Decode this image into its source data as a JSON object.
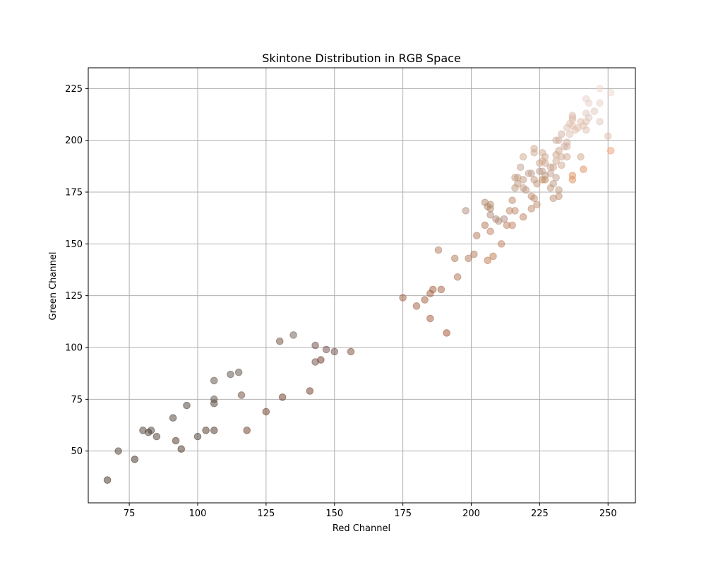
{
  "chart_data": {
    "type": "scatter",
    "title": "Skintone Distribution in RGB Space",
    "xlabel": "Red Channel",
    "ylabel": "Green Channel",
    "xlim": [
      60,
      260
    ],
    "ylim": [
      25,
      235
    ],
    "xticks": [
      75,
      100,
      125,
      150,
      175,
      200,
      225,
      250
    ],
    "yticks": [
      50,
      75,
      100,
      125,
      150,
      175,
      200,
      225
    ],
    "grid": true,
    "marker_opacity": 0.5,
    "points": [
      {
        "x": 67,
        "y": 36,
        "color": "#3d2b1f"
      },
      {
        "x": 71,
        "y": 50,
        "color": "#4a3b32"
      },
      {
        "x": 77,
        "y": 46,
        "color": "#3f2a1e"
      },
      {
        "x": 80,
        "y": 60,
        "color": "#4a3b32"
      },
      {
        "x": 82,
        "y": 59,
        "color": "#4a3b32"
      },
      {
        "x": 83,
        "y": 60,
        "color": "#4a3b32"
      },
      {
        "x": 85,
        "y": 57,
        "color": "#4a3b32"
      },
      {
        "x": 91,
        "y": 66,
        "color": "#4a3b32"
      },
      {
        "x": 92,
        "y": 55,
        "color": "#4a3124"
      },
      {
        "x": 94,
        "y": 51,
        "color": "#4a3124"
      },
      {
        "x": 96,
        "y": 72,
        "color": "#4a3b32"
      },
      {
        "x": 100,
        "y": 57,
        "color": "#4a3b32"
      },
      {
        "x": 103,
        "y": 60,
        "color": "#4a3124"
      },
      {
        "x": 106,
        "y": 60,
        "color": "#4a3124"
      },
      {
        "x": 106,
        "y": 73,
        "color": "#4a3b32"
      },
      {
        "x": 106,
        "y": 75,
        "color": "#5b4b42"
      },
      {
        "x": 106,
        "y": 84,
        "color": "#5b4b42"
      },
      {
        "x": 112,
        "y": 87,
        "color": "#5b4b42"
      },
      {
        "x": 115,
        "y": 88,
        "color": "#5b4b42"
      },
      {
        "x": 116,
        "y": 77,
        "color": "#6b4a35"
      },
      {
        "x": 118,
        "y": 60,
        "color": "#6b3a26"
      },
      {
        "x": 125,
        "y": 69,
        "color": "#6b3a26"
      },
      {
        "x": 130,
        "y": 103,
        "color": "#6b4a35"
      },
      {
        "x": 131,
        "y": 76,
        "color": "#6b3a26"
      },
      {
        "x": 135,
        "y": 106,
        "color": "#6b5a52"
      },
      {
        "x": 141,
        "y": 79,
        "color": "#6b3a26"
      },
      {
        "x": 143,
        "y": 93,
        "color": "#6b4a45"
      },
      {
        "x": 143,
        "y": 101,
        "color": "#6b4a45"
      },
      {
        "x": 145,
        "y": 94,
        "color": "#6b3a26"
      },
      {
        "x": 147,
        "y": 99,
        "color": "#6b4a45"
      },
      {
        "x": 150,
        "y": 98,
        "color": "#6b4a45"
      },
      {
        "x": 156,
        "y": 98,
        "color": "#7b4a35"
      },
      {
        "x": 175,
        "y": 124,
        "color": "#a06040"
      },
      {
        "x": 180,
        "y": 120,
        "color": "#a06040"
      },
      {
        "x": 183,
        "y": 123,
        "color": "#a06040"
      },
      {
        "x": 185,
        "y": 114,
        "color": "#a05a3a"
      },
      {
        "x": 185,
        "y": 126,
        "color": "#a06040"
      },
      {
        "x": 186,
        "y": 128,
        "color": "#a06040"
      },
      {
        "x": 188,
        "y": 147,
        "color": "#b07a5a"
      },
      {
        "x": 189,
        "y": 128,
        "color": "#a06040"
      },
      {
        "x": 191,
        "y": 107,
        "color": "#a05030"
      },
      {
        "x": 194,
        "y": 143,
        "color": "#b07a5a"
      },
      {
        "x": 195,
        "y": 134,
        "color": "#b07050"
      },
      {
        "x": 198,
        "y": 166,
        "color": "#b08a7a"
      },
      {
        "x": 199,
        "y": 143,
        "color": "#b07a5a"
      },
      {
        "x": 201,
        "y": 145,
        "color": "#b07a5a"
      },
      {
        "x": 202,
        "y": 154,
        "color": "#b07a5a"
      },
      {
        "x": 205,
        "y": 159,
        "color": "#b07a5a"
      },
      {
        "x": 205,
        "y": 170,
        "color": "#b08a6a"
      },
      {
        "x": 206,
        "y": 142,
        "color": "#c07a50"
      },
      {
        "x": 206,
        "y": 168,
        "color": "#b08a6a"
      },
      {
        "x": 207,
        "y": 156,
        "color": "#c08060"
      },
      {
        "x": 207,
        "y": 164,
        "color": "#b08a7a"
      },
      {
        "x": 207,
        "y": 167,
        "color": "#b08a6a"
      },
      {
        "x": 207,
        "y": 169,
        "color": "#b08a6a"
      },
      {
        "x": 208,
        "y": 144,
        "color": "#c07a50"
      },
      {
        "x": 209,
        "y": 162,
        "color": "#b08a7a"
      },
      {
        "x": 210,
        "y": 161,
        "color": "#b08a7a"
      },
      {
        "x": 211,
        "y": 150,
        "color": "#c08060"
      },
      {
        "x": 212,
        "y": 162,
        "color": "#b08a7a"
      },
      {
        "x": 213,
        "y": 159,
        "color": "#c08060"
      },
      {
        "x": 214,
        "y": 166,
        "color": "#c08a6a"
      },
      {
        "x": 215,
        "y": 159,
        "color": "#c08060"
      },
      {
        "x": 215,
        "y": 171,
        "color": "#c08a6a"
      },
      {
        "x": 216,
        "y": 166,
        "color": "#c08a6a"
      },
      {
        "x": 216,
        "y": 177,
        "color": "#c09a80"
      },
      {
        "x": 216,
        "y": 182,
        "color": "#c09a80"
      },
      {
        "x": 217,
        "y": 179,
        "color": "#c09a80"
      },
      {
        "x": 217,
        "y": 182,
        "color": "#c09a80"
      },
      {
        "x": 218,
        "y": 187,
        "color": "#c0a090"
      },
      {
        "x": 219,
        "y": 163,
        "color": "#c08060"
      },
      {
        "x": 219,
        "y": 177,
        "color": "#c09a80"
      },
      {
        "x": 219,
        "y": 181,
        "color": "#c09a80"
      },
      {
        "x": 219,
        "y": 192,
        "color": "#d0a890"
      },
      {
        "x": 220,
        "y": 176,
        "color": "#c09a80"
      },
      {
        "x": 221,
        "y": 184,
        "color": "#c0a090"
      },
      {
        "x": 222,
        "y": 167,
        "color": "#c08a6a"
      },
      {
        "x": 222,
        "y": 173,
        "color": "#c09070"
      },
      {
        "x": 222,
        "y": 184,
        "color": "#c0a090"
      },
      {
        "x": 223,
        "y": 172,
        "color": "#c09070"
      },
      {
        "x": 223,
        "y": 181,
        "color": "#c09a80"
      },
      {
        "x": 223,
        "y": 194,
        "color": "#d0a890"
      },
      {
        "x": 223,
        "y": 196,
        "color": "#d0a890"
      },
      {
        "x": 224,
        "y": 169,
        "color": "#c09070"
      },
      {
        "x": 224,
        "y": 179,
        "color": "#c09a80"
      },
      {
        "x": 225,
        "y": 185,
        "color": "#c0a090"
      },
      {
        "x": 225,
        "y": 189,
        "color": "#d0a890"
      },
      {
        "x": 226,
        "y": 181,
        "color": "#c08a60"
      },
      {
        "x": 226,
        "y": 185,
        "color": "#c0a090"
      },
      {
        "x": 226,
        "y": 190,
        "color": "#d0a890"
      },
      {
        "x": 226,
        "y": 194,
        "color": "#d0a890"
      },
      {
        "x": 227,
        "y": 181,
        "color": "#c08a60"
      },
      {
        "x": 227,
        "y": 183,
        "color": "#c09a80"
      },
      {
        "x": 227,
        "y": 189,
        "color": "#d0a890"
      },
      {
        "x": 227,
        "y": 192,
        "color": "#d0a890"
      },
      {
        "x": 229,
        "y": 177,
        "color": "#c09a80"
      },
      {
        "x": 229,
        "y": 184,
        "color": "#c0a090"
      },
      {
        "x": 229,
        "y": 187,
        "color": "#c0a090"
      },
      {
        "x": 230,
        "y": 172,
        "color": "#c09070"
      },
      {
        "x": 230,
        "y": 179,
        "color": "#c09a80"
      },
      {
        "x": 230,
        "y": 187,
        "color": "#d0a890"
      },
      {
        "x": 231,
        "y": 182,
        "color": "#c0a090"
      },
      {
        "x": 231,
        "y": 190,
        "color": "#d0a890"
      },
      {
        "x": 231,
        "y": 193,
        "color": "#d0a890"
      },
      {
        "x": 231,
        "y": 200,
        "color": "#d0b0a0"
      },
      {
        "x": 232,
        "y": 173,
        "color": "#c09070"
      },
      {
        "x": 232,
        "y": 176,
        "color": "#c09a80"
      },
      {
        "x": 232,
        "y": 195,
        "color": "#d0a890"
      },
      {
        "x": 232,
        "y": 200,
        "color": "#d0b0a0"
      },
      {
        "x": 233,
        "y": 188,
        "color": "#d0a890"
      },
      {
        "x": 233,
        "y": 192,
        "color": "#d0a890"
      },
      {
        "x": 233,
        "y": 203,
        "color": "#d0b0a0"
      },
      {
        "x": 234,
        "y": 197,
        "color": "#d0b0a0"
      },
      {
        "x": 235,
        "y": 192,
        "color": "#d0a890"
      },
      {
        "x": 235,
        "y": 197,
        "color": "#d0b0a0"
      },
      {
        "x": 235,
        "y": 199,
        "color": "#d0b0a0"
      },
      {
        "x": 235,
        "y": 206,
        "color": "#e0c0b0"
      },
      {
        "x": 236,
        "y": 203,
        "color": "#e0c0b0"
      },
      {
        "x": 236,
        "y": 208,
        "color": "#e0c0b0"
      },
      {
        "x": 237,
        "y": 181,
        "color": "#e09060"
      },
      {
        "x": 237,
        "y": 183,
        "color": "#e09060"
      },
      {
        "x": 237,
        "y": 207,
        "color": "#e0c0b0"
      },
      {
        "x": 237,
        "y": 210,
        "color": "#e0c0b0"
      },
      {
        "x": 237,
        "y": 211,
        "color": "#e0c0b0"
      },
      {
        "x": 237,
        "y": 212,
        "color": "#e0c0b0"
      },
      {
        "x": 238,
        "y": 205,
        "color": "#e0c0b0"
      },
      {
        "x": 239,
        "y": 206,
        "color": "#e0c0b0"
      },
      {
        "x": 240,
        "y": 192,
        "color": "#d0a890"
      },
      {
        "x": 240,
        "y": 209,
        "color": "#e0c0b0"
      },
      {
        "x": 241,
        "y": 186,
        "color": "#e09060"
      },
      {
        "x": 241,
        "y": 207,
        "color": "#e0c0b0"
      },
      {
        "x": 242,
        "y": 205,
        "color": "#e0c0b0"
      },
      {
        "x": 242,
        "y": 209,
        "color": "#e0c0b0"
      },
      {
        "x": 242,
        "y": 213,
        "color": "#e0c8c0"
      },
      {
        "x": 242,
        "y": 220,
        "color": "#e8d0c8"
      },
      {
        "x": 243,
        "y": 211,
        "color": "#e0c8c0"
      },
      {
        "x": 243,
        "y": 218,
        "color": "#e8d0c8"
      },
      {
        "x": 245,
        "y": 214,
        "color": "#e0c8c0"
      },
      {
        "x": 247,
        "y": 209,
        "color": "#e0c8c0"
      },
      {
        "x": 247,
        "y": 218,
        "color": "#e8d0c8"
      },
      {
        "x": 247,
        "y": 225,
        "color": "#f0d8d0"
      },
      {
        "x": 250,
        "y": 202,
        "color": "#e0c0b0"
      },
      {
        "x": 251,
        "y": 195,
        "color": "#f0a070"
      },
      {
        "x": 251,
        "y": 223,
        "color": "#f0d8d0"
      }
    ]
  }
}
